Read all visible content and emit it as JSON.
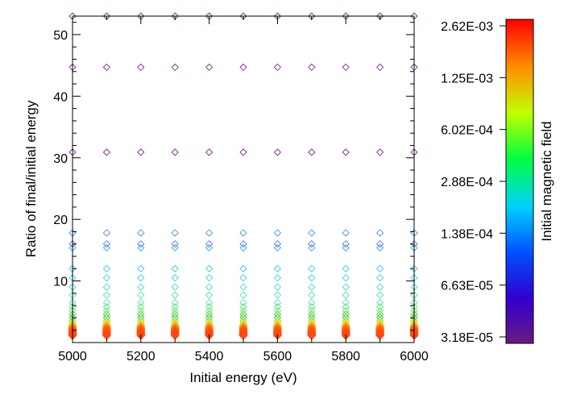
{
  "chart_data": {
    "type": "scatter",
    "xlabel": "Initial energy (eV)",
    "ylabel": "Ratio of final/initial energy",
    "xlim": [
      5000,
      6000
    ],
    "ylim": [
      0,
      53
    ],
    "x_ticks": [
      5000,
      5200,
      5400,
      5600,
      5800,
      6000
    ],
    "y_ticks": [
      10,
      20,
      30,
      40,
      50
    ],
    "marker": "diamond",
    "x_values": [
      5000,
      5100,
      5200,
      5300,
      5400,
      5500,
      5600,
      5700,
      5800,
      5900,
      6000
    ],
    "levels": [
      {
        "y": 53.0,
        "color": "#7a2a8a"
      },
      {
        "y": 44.7,
        "color": "#7a2a8a"
      },
      {
        "y": 30.9,
        "color": "#7a2a8a"
      },
      {
        "y": 17.8,
        "color": "#4a8ee0"
      },
      {
        "y": 16.0,
        "color": "#4a7ad8"
      },
      {
        "y": 15.4,
        "color": "#3fa0e8"
      },
      {
        "y": 12.0,
        "color": "#36c8e8"
      },
      {
        "y": 10.5,
        "color": "#38d0e0"
      },
      {
        "y": 9.0,
        "color": "#40d8d0"
      },
      {
        "y": 7.7,
        "color": "#48e0c0"
      },
      {
        "y": 6.5,
        "color": "#50e8a8"
      },
      {
        "y": 5.8,
        "color": "#60e080"
      },
      {
        "y": 5.2,
        "color": "#70e060"
      },
      {
        "y": 4.6,
        "color": "#3ad040"
      },
      {
        "y": 4.1,
        "color": "#2cc830"
      },
      {
        "y": 3.6,
        "color": "#7cd828"
      },
      {
        "y": 3.2,
        "color": "#b8e020"
      },
      {
        "y": 2.9,
        "color": "#f0d818"
      },
      {
        "y": 2.6,
        "color": "#ffa018"
      },
      {
        "y": 2.35,
        "color": "#ff7a14"
      },
      {
        "y": 2.15,
        "color": "#ff6a12"
      },
      {
        "y": 1.95,
        "color": "#ff5a10"
      },
      {
        "y": 1.75,
        "color": "#ff5010"
      },
      {
        "y": 1.55,
        "color": "#ff4a10"
      },
      {
        "y": 1.35,
        "color": "#ff4810"
      },
      {
        "y": 1.15,
        "color": "#ff4810"
      }
    ],
    "colorbar": {
      "label": "Initial magnetic field",
      "ticks": [
        "3.18E-05",
        "6.63E-05",
        "1.38E-04",
        "2.88E-04",
        "6.02E-04",
        "1.25E-03",
        "2.62E-03"
      ],
      "scale": "log",
      "colors": [
        "#6a1a80",
        "#0000ff",
        "#00c8ff",
        "#00ff40",
        "#ffff00",
        "#ff8000",
        "#ff0000"
      ]
    }
  }
}
